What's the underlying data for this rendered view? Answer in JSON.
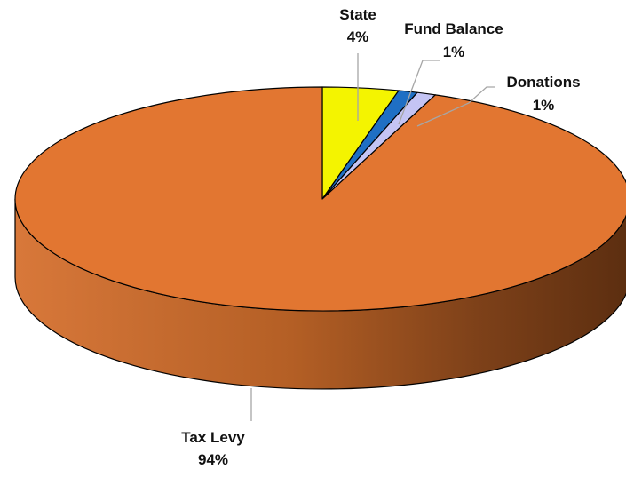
{
  "chart_data": {
    "type": "pie",
    "style": "3d",
    "slices": [
      {
        "name": "State",
        "value": 4,
        "label": "4%",
        "color": "#f4f400"
      },
      {
        "name": "Fund Balance",
        "value": 1,
        "label": "1%",
        "color": "#1f6fc4"
      },
      {
        "name": "Donations",
        "value": 1,
        "label": "1%",
        "color": "#c4c4f4"
      },
      {
        "name": "Tax Levy",
        "value": 94,
        "label": "94%",
        "color": "#e27631"
      }
    ],
    "title": "",
    "legend": "none"
  }
}
